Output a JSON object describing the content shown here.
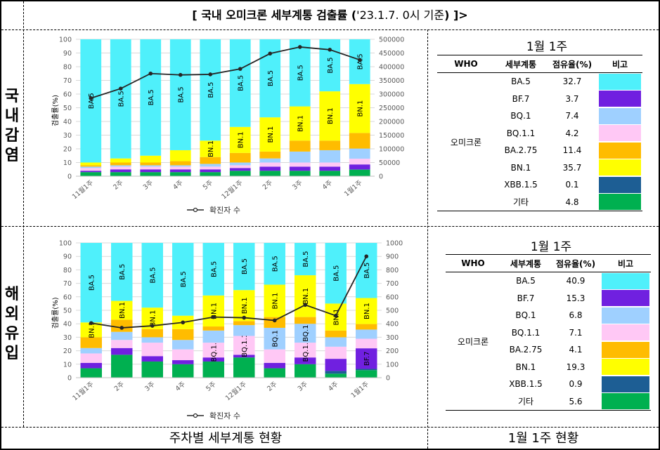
{
  "title": {
    "main": "[ 국내 오미크론 세부계통 검출률 (",
    "date": "'23.1.7. 0시 기준",
    "tail": ") ]>"
  },
  "sections": [
    {
      "label": [
        "국",
        "내",
        "감",
        "염"
      ]
    },
    {
      "label": [
        "해",
        "외",
        "유",
        "입"
      ]
    }
  ],
  "footer": {
    "left": "주차별 세부계통 현황",
    "right": "1월 1주 현황"
  },
  "colors": {
    "BA.5": "#4ff0fb",
    "BF.7": "#7020e0",
    "BQ.1": "#9fd0ff",
    "BQ.1.1": "#ffc8f5",
    "BA.2.75": "#ffbc00",
    "BN.1": "#ffff00",
    "XBB.1.5": "#1d5e94",
    "기타": "#00b050"
  },
  "chart_data": [
    {
      "type": "bar",
      "stacked": true,
      "categories": [
        "11월1주",
        "2주",
        "3주",
        "4주",
        "5주",
        "12월1주",
        "2주",
        "3주",
        "4주",
        "1월1주"
      ],
      "ylabel": "검출률(%)",
      "ylim": [
        0,
        100
      ],
      "yticks": [
        0,
        10,
        20,
        30,
        40,
        50,
        60,
        70,
        80,
        90,
        100
      ],
      "y2lim": [
        0,
        500000
      ],
      "y2ticks": [
        0,
        50000,
        100000,
        150000,
        200000,
        250000,
        300000,
        350000,
        400000,
        450000,
        500000
      ],
      "series": [
        {
          "name": "기타",
          "values": [
            3,
            3,
            3,
            3,
            3,
            4,
            4,
            4,
            4,
            4.8
          ]
        },
        {
          "name": "XBB.1.5",
          "values": [
            0,
            0,
            0,
            0,
            0,
            0,
            0,
            0,
            0,
            0.1
          ]
        },
        {
          "name": "BF.7",
          "values": [
            1,
            2,
            2,
            2,
            2,
            2,
            3,
            3,
            3,
            3.7
          ]
        },
        {
          "name": "BQ.1.1",
          "values": [
            2,
            2,
            2,
            2,
            2,
            2,
            3,
            3,
            3,
            4.2
          ]
        },
        {
          "name": "BQ.1",
          "values": [
            1,
            1,
            1,
            1,
            2,
            2,
            3,
            8,
            9,
            7.4
          ]
        },
        {
          "name": "BA.2.75",
          "values": [
            1,
            2,
            2,
            3,
            5,
            7,
            5,
            8,
            7,
            11.4
          ]
        },
        {
          "name": "BN.1",
          "values": [
            2,
            3,
            5,
            8,
            12,
            19,
            25,
            25,
            36,
            35.7
          ]
        },
        {
          "name": "BA.5",
          "values": [
            90,
            87,
            85,
            81,
            74,
            64,
            57,
            49,
            38,
            32.7
          ]
        }
      ],
      "bar_labels": {
        "BA.5": "BA.5",
        "BN.1": "BN.1"
      },
      "line": {
        "name": "확진자 수",
        "values": [
          285000,
          320000,
          375000,
          370000,
          372000,
          392000,
          448000,
          472000,
          462000,
          425000
        ]
      },
      "legend": "bottom"
    },
    {
      "type": "bar",
      "stacked": true,
      "categories": [
        "11월1주",
        "2주",
        "3주",
        "4주",
        "5주",
        "12월1주",
        "2주",
        "3주",
        "4주",
        "1월1주"
      ],
      "ylabel": "검출률(%)",
      "ylim": [
        0,
        100
      ],
      "yticks": [
        0,
        10,
        20,
        30,
        40,
        50,
        60,
        70,
        80,
        90,
        100
      ],
      "y2lim": [
        0,
        1000
      ],
      "y2ticks": [
        0,
        100,
        200,
        300,
        400,
        500,
        600,
        700,
        800,
        900,
        1000
      ],
      "series": [
        {
          "name": "기타",
          "values": [
            7,
            17,
            12,
            10,
            12,
            15,
            7,
            10,
            3,
            5.6
          ]
        },
        {
          "name": "XBB.1.5",
          "values": [
            0,
            0,
            0,
            0,
            0,
            0,
            0,
            0,
            2,
            0.9
          ]
        },
        {
          "name": "BF.7",
          "values": [
            4,
            5,
            4,
            3,
            3,
            2,
            4,
            5,
            9,
            15.3
          ]
        },
        {
          "name": "BQ.1.1",
          "values": [
            7,
            6,
            10,
            8,
            11,
            14,
            10,
            11,
            9,
            7.1
          ]
        },
        {
          "name": "BQ.1",
          "values": [
            4,
            6,
            4,
            7,
            9,
            8,
            16,
            14,
            7,
            6.8
          ]
        },
        {
          "name": "BA.2.75",
          "values": [
            8,
            9,
            6,
            8,
            3,
            3,
            8,
            5,
            5,
            4.1
          ]
        },
        {
          "name": "BN.1",
          "values": [
            11,
            14,
            16,
            10,
            23,
            23,
            24,
            31,
            20,
            19.3
          ]
        },
        {
          "name": "BA.5",
          "values": [
            59,
            43,
            48,
            54,
            39,
            35,
            31,
            24,
            45,
            40.9
          ]
        }
      ],
      "bar_labels": {
        "BA.5": "BA.5",
        "BN.1": "BN.1",
        "BQ.1.1": "BQ.1.1",
        "BQ.1": "BQ.1",
        "BF.7": "BF.7"
      },
      "line": {
        "name": "확진자 수",
        "values": [
          405,
          370,
          385,
          410,
          450,
          445,
          425,
          540,
          460,
          900
        ]
      },
      "legend": "bottom"
    }
  ],
  "tables": [
    {
      "title": "1월  1주",
      "headers": [
        "WHO",
        "세부계통",
        "점유율(%)",
        "비고"
      ],
      "group": "오미크론",
      "rows": [
        {
          "lineage": "BA.5",
          "share": "32.7"
        },
        {
          "lineage": "BF.7",
          "share": "3.7"
        },
        {
          "lineage": "BQ.1",
          "share": "7.4"
        },
        {
          "lineage": "BQ.1.1",
          "share": "4.2"
        },
        {
          "lineage": "BA.2.75",
          "share": "11.4"
        },
        {
          "lineage": "BN.1",
          "share": "35.7"
        },
        {
          "lineage": "XBB.1.5",
          "share": "0.1"
        },
        {
          "lineage": "기타",
          "share": "4.8"
        }
      ]
    },
    {
      "title": "1월  1주",
      "headers": [
        "WHO",
        "세부계통",
        "점유율(%)",
        "비고"
      ],
      "group": "오미크론",
      "rows": [
        {
          "lineage": "BA.5",
          "share": "40.9"
        },
        {
          "lineage": "BF.7",
          "share": "15.3"
        },
        {
          "lineage": "BQ.1",
          "share": "6.8"
        },
        {
          "lineage": "BQ.1.1",
          "share": "7.1"
        },
        {
          "lineage": "BA.2.75",
          "share": "4.1"
        },
        {
          "lineage": "BN.1",
          "share": "19.3"
        },
        {
          "lineage": "XBB.1.5",
          "share": "0.9"
        },
        {
          "lineage": "기타",
          "share": "5.6"
        }
      ]
    }
  ]
}
